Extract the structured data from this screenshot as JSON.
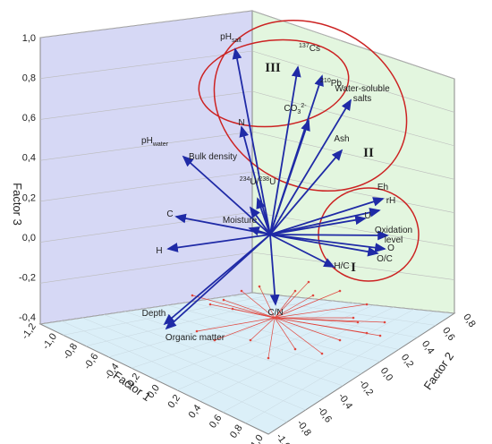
{
  "chart_data": {
    "type": "scatter",
    "subtype": "3d-loading-vectors",
    "axes": {
      "x": {
        "label": "Factor 1",
        "ticks": [
          "-1,2",
          "-1,0",
          "-0,8",
          "-0,6",
          "-0,4",
          "-0,2",
          "0,0",
          "0,2",
          "0,4",
          "0,6",
          "0,8",
          "1,0"
        ]
      },
      "y": {
        "label": "Factor 2",
        "ticks": [
          "-1,0",
          "-0,8",
          "-0,6",
          "-0,4",
          "-0,2",
          "0,0",
          "0,2",
          "0,4",
          "0,6",
          "0,8"
        ]
      },
      "z": {
        "label": "Factor 3",
        "ticks": [
          "-0,4",
          "-0,2",
          "0,0",
          "0,2",
          "0,4",
          "0,6",
          "0,8",
          "1,0"
        ],
        "range": [
          -0.45,
          1.0
        ]
      }
    },
    "vectors": [
      {
        "name": "pH_salt",
        "label_main": "pH",
        "label_sub": "salt"
      },
      {
        "name": "137Cs",
        "label_sup": "137",
        "label_main": "Cs"
      },
      {
        "name": "210Pb",
        "label_sup": "210",
        "label_main": "Pb"
      },
      {
        "name": "CO3 2-",
        "label_main": "CO",
        "label_sub": "3",
        "label_sup2": "2-"
      },
      {
        "name": "Water-soluble salts",
        "label_line1": "Water-soluble",
        "label_line2": "salts"
      },
      {
        "name": "N",
        "label_main": "N"
      },
      {
        "name": "pH_water",
        "label_main": "pH",
        "label_sub": "water"
      },
      {
        "name": "Bulk density",
        "label_main": "Bulk density"
      },
      {
        "name": "234U/238U",
        "label_sup": "234",
        "label_main": "U/",
        "label_sup2": "238",
        "label_main2": "U"
      },
      {
        "name": "Ash",
        "label_main": "Ash"
      },
      {
        "name": "C",
        "label_main": "C"
      },
      {
        "name": "Moisture",
        "label_main": "Moisture"
      },
      {
        "name": "H",
        "label_main": "H"
      },
      {
        "name": "Eh",
        "label_main": "Eh"
      },
      {
        "name": "rH",
        "label_main": "rH"
      },
      {
        "name": "U",
        "label_main": "U"
      },
      {
        "name": "Oxidation level",
        "label_line1": "Oxidation",
        "label_line2": "level"
      },
      {
        "name": "O",
        "label_main": "O"
      },
      {
        "name": "O/C",
        "label_main": "O/C"
      },
      {
        "name": "H/C",
        "label_main": "H/C"
      },
      {
        "name": "C/N",
        "label_main": "C/N"
      },
      {
        "name": "Depth",
        "label_main": "Depth"
      },
      {
        "name": "Organic matter",
        "label_main": "Organic matter"
      }
    ],
    "groups": [
      {
        "name": "I",
        "members": [
          "Eh",
          "rH",
          "U",
          "Oxidation level",
          "O",
          "O/C",
          "H/C"
        ]
      },
      {
        "name": "II",
        "members": [
          "Ash",
          "Water-soluble salts",
          "210Pb",
          "CO3 2-",
          "137Cs",
          "pH_salt",
          "N"
        ]
      },
      {
        "name": "III",
        "members": [
          "pH_salt",
          "137Cs",
          "CO3 2-",
          "210Pb",
          "N"
        ]
      }
    ],
    "colors": {
      "vector": "#1f2aa6",
      "projection": "#e0473f",
      "ellipse": "#cc2222",
      "back_wall": "#d6d8f5",
      "side_wall": "#e3f6df",
      "floor": "#dbeff8"
    }
  }
}
